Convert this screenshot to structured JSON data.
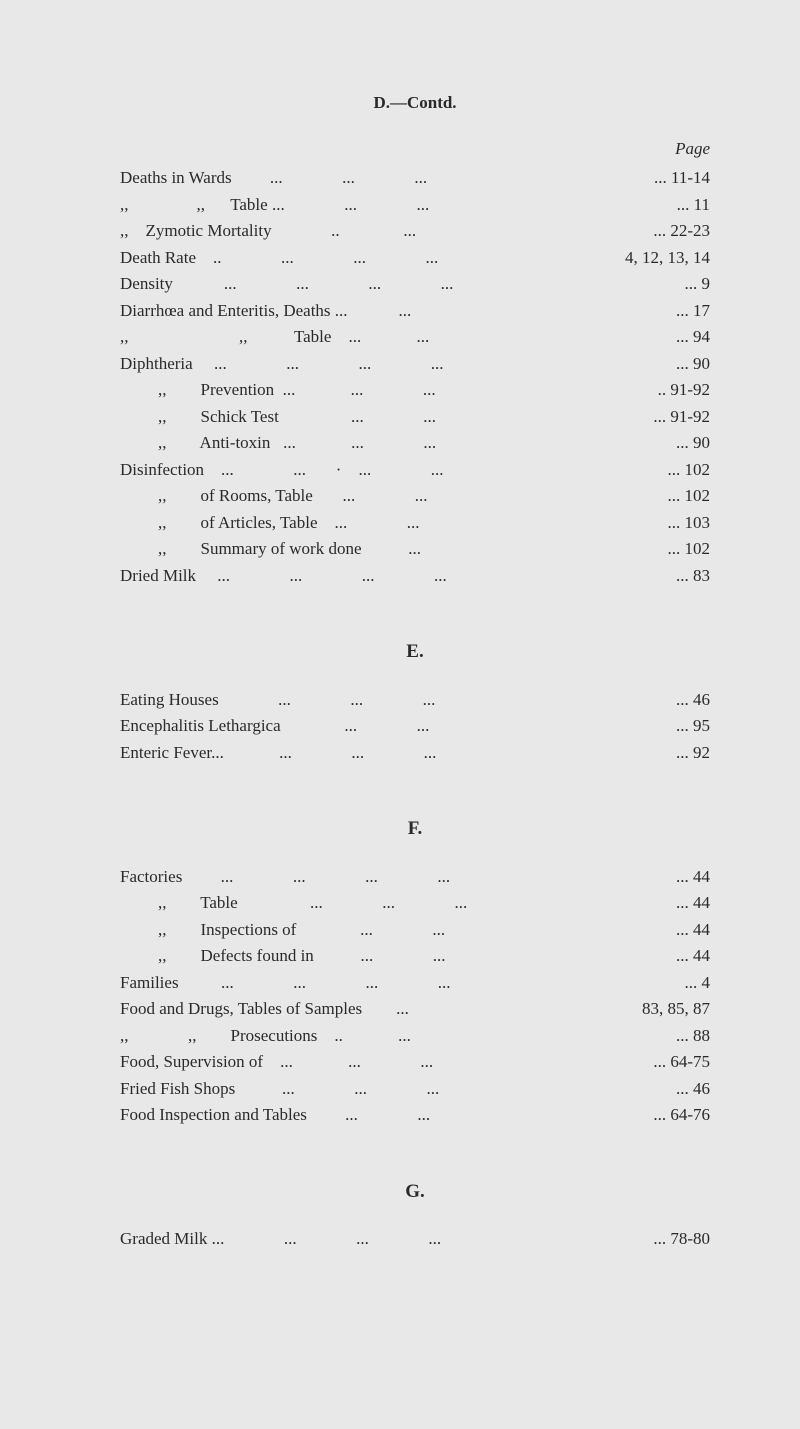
{
  "sectionD": {
    "header": "D.—Contd.",
    "pageLabel": "Page",
    "entries": [
      {
        "label": "Deaths in Wards         ...              ...              ...",
        "page": "... 11-14",
        "indent": 0
      },
      {
        "label": ",,                ,,      Table ...              ...              ...",
        "page": "...      11",
        "indent": 0
      },
      {
        "label": ",,    Zymotic Mortality              ..               ...",
        "page": "... 22-23",
        "indent": 0
      },
      {
        "label": "Death Rate    ..              ...              ...              ...",
        "page": "4, 12, 13, 14",
        "indent": 0
      },
      {
        "label": "Density            ...              ...              ...              ...",
        "page": "...        9",
        "indent": 0
      },
      {
        "label": "Diarrhœa and Enteritis, Deaths ...            ...",
        "page": "...      17",
        "indent": 0
      },
      {
        "label": ",,                          ,,           Table    ...             ...",
        "page": "...      94",
        "indent": 0
      },
      {
        "label": "Diphtheria     ...              ...              ...              ...",
        "page": "...      90",
        "indent": 0
      },
      {
        "label": ",,        Prevention  ...             ...              ...",
        "page": "..  91-92",
        "indent": 1
      },
      {
        "label": ",,        Schick Test                 ...              ...",
        "page": "... 91-92",
        "indent": 1
      },
      {
        "label": ",,        Anti-toxin   ...             ...              ...",
        "page": "...      90",
        "indent": 1
      },
      {
        "label": "Disinfection    ...              ...       ·    ...              ...",
        "page": "...    102",
        "indent": 0
      },
      {
        "label": ",,        of Rooms, Table       ...              ...",
        "page": "...    102",
        "indent": 1
      },
      {
        "label": ",,        of Articles, Table    ...              ...",
        "page": "...    103",
        "indent": 1
      },
      {
        "label": ",,        Summary of work done           ...",
        "page": "...    102",
        "indent": 1
      },
      {
        "label": "Dried Milk     ...              ...              ...              ...",
        "page": "...      83",
        "indent": 0
      }
    ]
  },
  "sectionE": {
    "letter": "E.",
    "entries": [
      {
        "label": "Eating Houses              ...              ...              ...",
        "page": "...      46",
        "indent": 0
      },
      {
        "label": "Encephalitis Lethargica               ...              ...",
        "page": "...      95",
        "indent": 0
      },
      {
        "label": "Enteric Fever...             ...              ...              ...",
        "page": "...      92",
        "indent": 0
      }
    ]
  },
  "sectionF": {
    "letter": "F.",
    "entries": [
      {
        "label": "Factories         ...              ...              ...              ...",
        "page": "...      44",
        "indent": 0
      },
      {
        "label": ",,        Table                 ...              ...              ...",
        "page": "...      44",
        "indent": 1
      },
      {
        "label": ",,        Inspections of               ...              ...",
        "page": "...      44",
        "indent": 1
      },
      {
        "label": ",,        Defects found in           ...              ...",
        "page": "...      44",
        "indent": 1
      },
      {
        "label": "Families          ...              ...              ...              ...",
        "page": "...        4",
        "indent": 0
      },
      {
        "label": "Food and Drugs, Tables of Samples        ...",
        "page": "83, 85, 87",
        "indent": 0
      },
      {
        "label": ",,              ,,        Prosecutions    ..             ...",
        "page": "...      88",
        "indent": 0
      },
      {
        "label": "Food, Supervision of    ...             ...              ...",
        "page": "... 64-75",
        "indent": 0
      },
      {
        "label": "Fried Fish Shops           ...              ...              ...",
        "page": "...      46",
        "indent": 0
      },
      {
        "label": "Food Inspection and Tables         ...              ...",
        "page": "... 64-76",
        "indent": 0
      }
    ]
  },
  "sectionG": {
    "letter": "G.",
    "entries": [
      {
        "label": "Graded Milk ...              ...              ...              ...",
        "page": "... 78-80",
        "indent": 0
      }
    ]
  }
}
